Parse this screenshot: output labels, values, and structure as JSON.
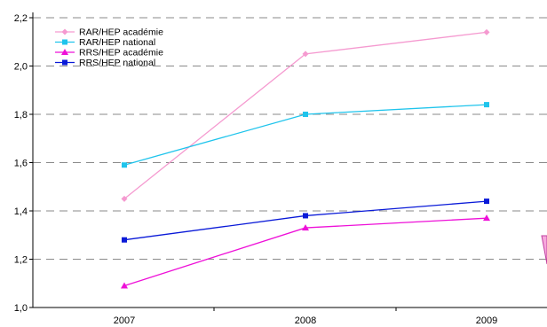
{
  "chart_data": {
    "type": "line",
    "categories": [
      "2007",
      "2008",
      "2009"
    ],
    "ylim": [
      1.0,
      2.2
    ],
    "yticks": [
      "1,0",
      "1,2",
      "1,4",
      "1,6",
      "1,8",
      "2,0",
      "2,2"
    ],
    "grid": true,
    "legend_position": "top-left",
    "series": [
      {
        "name": "RAR/HEP académie",
        "values": [
          1.45,
          2.05,
          2.14
        ],
        "color": "#f59ad0",
        "marker": "diamond"
      },
      {
        "name": "RAR/HEP national",
        "values": [
          1.59,
          1.8,
          1.84
        ],
        "color": "#1fc4ec",
        "marker": "square"
      },
      {
        "name": "RRS/HEP académie",
        "values": [
          1.09,
          1.33,
          1.37
        ],
        "color": "#ee10d8",
        "marker": "triangle"
      },
      {
        "name": "RRS/HEP national",
        "values": [
          1.28,
          1.38,
          1.44
        ],
        "color": "#0a1ad8",
        "marker": "square"
      }
    ]
  }
}
